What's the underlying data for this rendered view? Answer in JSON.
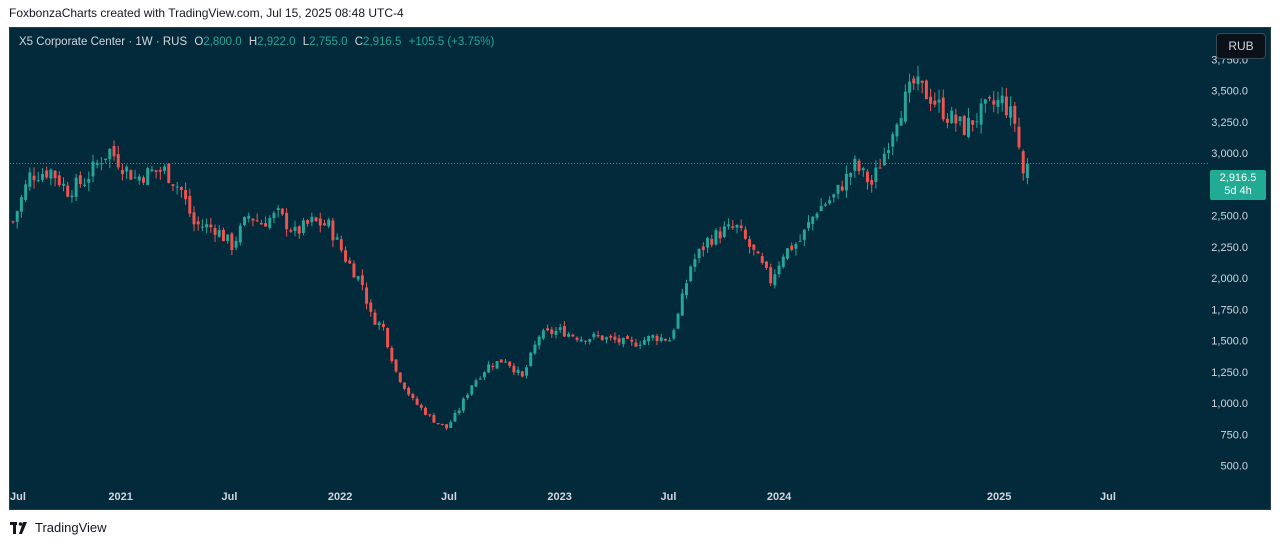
{
  "attribution": "FoxbonzaCharts created with TradingView.com, Jul 15, 2025 08:48 UTC-4",
  "legend": {
    "symbol": "X5 Corporate Center",
    "interval": "1W",
    "exchange": "RUS",
    "open_label": "O",
    "open": "2,800.0",
    "high_label": "H",
    "high": "2,922.0",
    "low_label": "L",
    "low": "2,755.0",
    "close_label": "C",
    "close": "2,916.5",
    "change": "+105.5 (+3.75%)"
  },
  "currency_button": "RUB",
  "price_tag": {
    "price": "2,916.5",
    "countdown": "5d 4h"
  },
  "footer": {
    "brand": "TradingView",
    "logo_icon": "tradingview-logo-icon"
  },
  "colors": {
    "background": "#032a3a",
    "up": "#26a69a",
    "down": "#ef5350",
    "axis_text": "#d1d4dc",
    "last_price_tag": "#22ab94"
  },
  "chart_data": {
    "type": "candlestick",
    "interval": "1W",
    "y_axis": {
      "ticks": [
        500,
        750,
        1000,
        1250,
        1500,
        1750,
        2000,
        2250,
        2500,
        2750,
        3000,
        3250,
        3500,
        3750
      ],
      "tick_labels": [
        "500.0",
        "750.0",
        "1,000.0",
        "1,250.0",
        "1,500.0",
        "1,750.0",
        "2,000.0",
        "2,250.0",
        "2,500.0",
        "2,750.0",
        "3,000.0",
        "3,250.0",
        "3,500.0",
        "3,750.0"
      ],
      "range": [
        320,
        4000
      ]
    },
    "x_axis": {
      "labels": [
        {
          "label": "Jul",
          "date": "2020-07-01"
        },
        {
          "label": "2021",
          "date": "2021-01-01"
        },
        {
          "label": "Jul",
          "date": "2021-07-01"
        },
        {
          "label": "2022",
          "date": "2022-01-01"
        },
        {
          "label": "Jul",
          "date": "2022-07-01"
        },
        {
          "label": "2023",
          "date": "2023-01-01"
        },
        {
          "label": "Jul",
          "date": "2023-07-01"
        },
        {
          "label": "2024",
          "date": "2024-01-01"
        },
        {
          "label": "2025",
          "date": "2025-01-01"
        },
        {
          "label": "Jul",
          "date": "2025-07-01"
        }
      ],
      "range": [
        "2020-07-01",
        "2025-12-01"
      ]
    },
    "last_price": 2916.5,
    "series_close": [
      {
        "date": "2020-07-06",
        "close": 2450
      },
      {
        "date": "2020-08-03",
        "close": 2820
      },
      {
        "date": "2020-09-07",
        "close": 2860
      },
      {
        "date": "2020-10-05",
        "close": 2700
      },
      {
        "date": "2020-11-02",
        "close": 2780
      },
      {
        "date": "2020-11-30",
        "close": 2960
      },
      {
        "date": "2020-12-14",
        "close": 3020
      },
      {
        "date": "2021-01-04",
        "close": 2900
      },
      {
        "date": "2021-01-25",
        "close": 2800
      },
      {
        "date": "2021-02-22",
        "close": 2850
      },
      {
        "date": "2021-03-15",
        "close": 2860
      },
      {
        "date": "2021-04-12",
        "close": 2700
      },
      {
        "date": "2021-05-03",
        "close": 2430
      },
      {
        "date": "2021-06-07",
        "close": 2400
      },
      {
        "date": "2021-07-05",
        "close": 2260
      },
      {
        "date": "2021-08-02",
        "close": 2500
      },
      {
        "date": "2021-08-23",
        "close": 2440
      },
      {
        "date": "2021-09-20",
        "close": 2510
      },
      {
        "date": "2021-10-18",
        "close": 2360
      },
      {
        "date": "2021-11-15",
        "close": 2450
      },
      {
        "date": "2021-12-13",
        "close": 2420
      },
      {
        "date": "2022-01-10",
        "close": 2160
      },
      {
        "date": "2022-02-07",
        "close": 1950
      },
      {
        "date": "2022-02-21",
        "close": 1700
      },
      {
        "date": "2022-03-14",
        "close": 1600
      },
      {
        "date": "2022-04-04",
        "close": 1250
      },
      {
        "date": "2022-05-02",
        "close": 1020
      },
      {
        "date": "2022-06-06",
        "close": 860
      },
      {
        "date": "2022-06-27",
        "close": 800
      },
      {
        "date": "2022-07-18",
        "close": 950
      },
      {
        "date": "2022-08-08",
        "close": 1150
      },
      {
        "date": "2022-09-05",
        "close": 1300
      },
      {
        "date": "2022-10-03",
        "close": 1350
      },
      {
        "date": "2022-10-31",
        "close": 1200
      },
      {
        "date": "2022-11-28",
        "close": 1540
      },
      {
        "date": "2023-01-02",
        "close": 1580
      },
      {
        "date": "2023-02-06",
        "close": 1520
      },
      {
        "date": "2023-03-06",
        "close": 1530
      },
      {
        "date": "2023-04-03",
        "close": 1500
      },
      {
        "date": "2023-05-01",
        "close": 1470
      },
      {
        "date": "2023-06-05",
        "close": 1530
      },
      {
        "date": "2023-07-03",
        "close": 1510
      },
      {
        "date": "2023-07-17",
        "close": 1700
      },
      {
        "date": "2023-08-07",
        "close": 2100
      },
      {
        "date": "2023-09-04",
        "close": 2300
      },
      {
        "date": "2023-10-02",
        "close": 2380
      },
      {
        "date": "2023-10-23",
        "close": 2400
      },
      {
        "date": "2023-11-20",
        "close": 2200
      },
      {
        "date": "2023-12-18",
        "close": 1980
      },
      {
        "date": "2024-01-08",
        "close": 2200
      },
      {
        "date": "2024-02-05",
        "close": 2300
      },
      {
        "date": "2024-03-04",
        "close": 2550
      },
      {
        "date": "2024-04-01",
        "close": 2650
      },
      {
        "date": "2024-05-06",
        "close": 2900
      },
      {
        "date": "2024-06-03",
        "close": 2750
      },
      {
        "date": "2024-06-24",
        "close": 3000
      },
      {
        "date": "2024-07-15",
        "close": 3300
      },
      {
        "date": "2024-08-12",
        "close": 3550
      },
      {
        "date": "2024-09-09",
        "close": 3450
      },
      {
        "date": "2024-10-07",
        "close": 3300
      },
      {
        "date": "2024-11-04",
        "close": 3200
      },
      {
        "date": "2024-12-09",
        "close": 3350
      },
      {
        "date": "2025-01-06",
        "close": 3420
      },
      {
        "date": "2025-01-27",
        "close": 3250
      },
      {
        "date": "2025-02-10",
        "close": 2840
      },
      {
        "date": "2025-02-17",
        "close": 2916.5
      }
    ]
  }
}
